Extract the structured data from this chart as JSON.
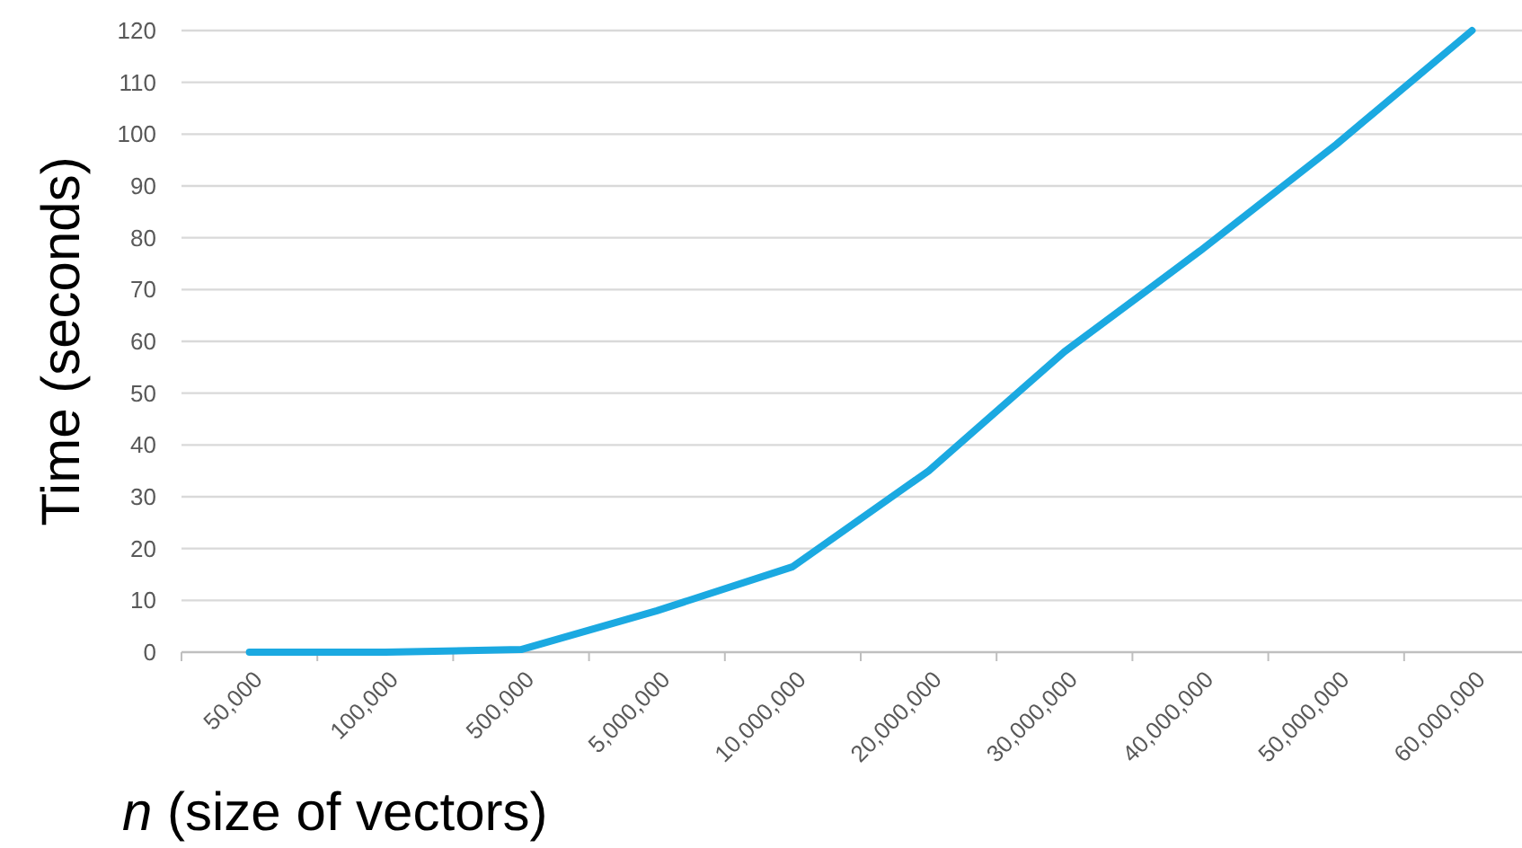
{
  "chart_data": {
    "type": "line",
    "xlabel": "n (size of vectors)",
    "ylabel": "Time (seconds)",
    "categories": [
      "50,000",
      "100,000",
      "500,000",
      "5,000,000",
      "10,000,000",
      "20,000,000",
      "30,000,000",
      "40,000,000",
      "50,000,000",
      "60,000,000"
    ],
    "series": [
      {
        "color": "#1ba9e1",
        "values": [
          0,
          0,
          0.5,
          8,
          16.5,
          35,
          58,
          77.5,
          98,
          120
        ]
      }
    ],
    "ylim": [
      0,
      120
    ],
    "yticks": [
      0,
      10,
      20,
      30,
      40,
      50,
      60,
      70,
      80,
      90,
      100,
      110,
      120
    ],
    "grid": "y",
    "marker": "none",
    "line_style": "solid"
  }
}
